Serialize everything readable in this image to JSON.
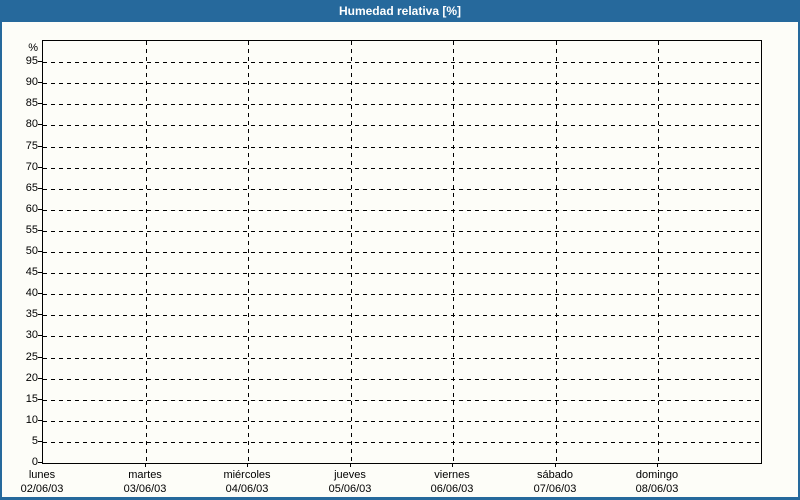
{
  "window": {
    "title": "Humedad relativa [%]"
  },
  "colors": {
    "titlebar": "#26699c",
    "title_text": "#ffffff",
    "window_border": "#26699c",
    "background": "#fdfdf8",
    "grid_and_axis": "#000000",
    "label_text": "#000000"
  },
  "chart_data": {
    "type": "line",
    "title": "Humedad relativa [%]",
    "y_axis": {
      "unit_label": "%",
      "min": 0,
      "max": 100,
      "tick_step": 5,
      "tick_labels": [
        "0",
        "5",
        "10",
        "15",
        "20",
        "25",
        "30",
        "35",
        "40",
        "45",
        "50",
        "55",
        "60",
        "65",
        "70",
        "75",
        "80",
        "85",
        "90",
        "95"
      ]
    },
    "x_axis": {
      "categories": [
        {
          "day": "lunes",
          "date": "02/06/03"
        },
        {
          "day": "martes",
          "date": "03/06/03"
        },
        {
          "day": "miércoles",
          "date": "04/06/03"
        },
        {
          "day": "jueves",
          "date": "05/06/03"
        },
        {
          "day": "viernes",
          "date": "06/06/03"
        },
        {
          "day": "sábado",
          "date": "07/06/03"
        },
        {
          "day": "domingo",
          "date": "08/06/03"
        }
      ]
    },
    "grid": {
      "horizontal": "dashed",
      "vertical": "dashed"
    },
    "legend": null,
    "series": [],
    "note": "Plot area is empty — no data series are drawn."
  }
}
